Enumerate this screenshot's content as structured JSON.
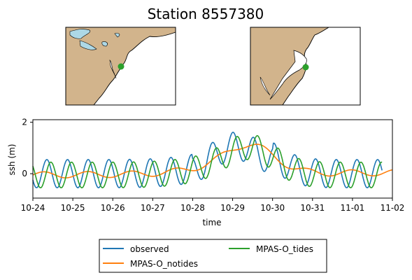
{
  "chart_data": {
    "type": "line",
    "title": "Station 8557380",
    "xlabel": "time",
    "ylabel": "ssh (m)",
    "x_ticks": [
      "10-24",
      "10-25",
      "10-26",
      "10-27",
      "10-28",
      "10-29",
      "10-30",
      "10-31",
      "11-01",
      "11-02"
    ],
    "y_ticks": [
      "0",
      "2"
    ],
    "xlim": [
      "10-24",
      "11-02"
    ],
    "ylim": [
      -0.95,
      2.1
    ],
    "grid": false,
    "legend_location": "lower center, outside plot, 2 columns",
    "series": [
      {
        "name": "observed",
        "color": "#1f77b4"
      },
      {
        "name": "MPAS-O_notides",
        "color": "#ff7f0e"
      },
      {
        "name": "MPAS-O_tides",
        "color": "#2ca02c"
      }
    ],
    "maps": [
      {
        "type": "map",
        "region": "northeast US coast",
        "land_color": "#d2b48c",
        "water_color": "#add8e6",
        "marker_color": "#2ca02c"
      },
      {
        "type": "map",
        "region": "Delaware Bay",
        "land_color": "#d2b48c",
        "water_color": "#ffffff",
        "marker_color": "#2ca02c"
      }
    ]
  }
}
